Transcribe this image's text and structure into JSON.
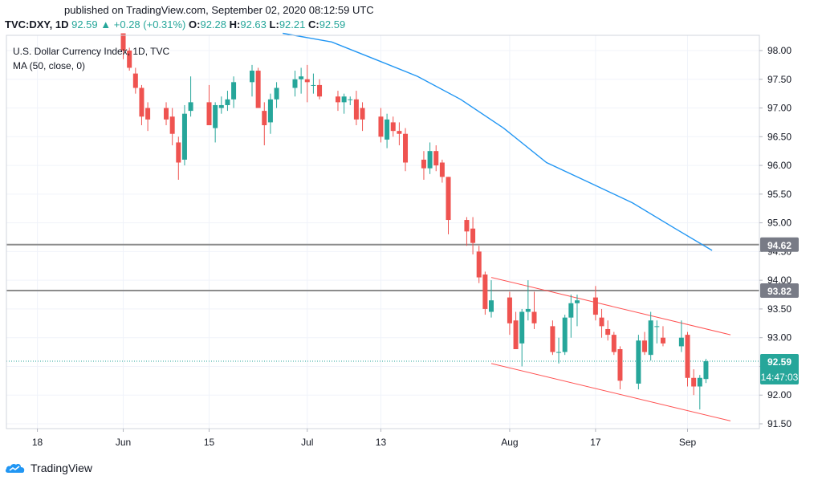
{
  "header": {
    "published": "published on TradingView.com, September 02, 2020 08:12:59 UTC",
    "symbol": "TVC:DXY, 1D",
    "last": "92.59",
    "up_arrow": "▲",
    "change": "+0.28 (+0.31%)",
    "o_label": "O:",
    "o": "92.28",
    "h_label": "H:",
    "h": "92.63",
    "l_label": "L:",
    "l": "92.21",
    "c_label": "C:",
    "c": "92.59"
  },
  "legend": {
    "title": "U.S. Dollar Currency Index, 1D, TVC",
    "ma": "MA (50, close, 0)"
  },
  "price_axis": {
    "ticks": [
      "98.00",
      "97.50",
      "97.00",
      "96.50",
      "96.00",
      "95.50",
      "95.00",
      "94.50",
      "94.00",
      "93.50",
      "93.00",
      "92.50",
      "92.00",
      "91.50"
    ]
  },
  "time_axis": {
    "ticks": [
      {
        "label": "18",
        "x": "2020-05-18"
      },
      {
        "label": "Jun",
        "x": "2020-06-01"
      },
      {
        "label": "15",
        "x": "2020-06-15"
      },
      {
        "label": "Jul",
        "x": "2020-07-01"
      },
      {
        "label": "13",
        "x": "2020-07-13"
      },
      {
        "label": "Aug",
        "x": "2020-08-03"
      },
      {
        "label": "17",
        "x": "2020-08-17"
      },
      {
        "label": "Sep",
        "x": "2020-09-01"
      }
    ]
  },
  "price_labels": {
    "level1": "94.62",
    "level2": "93.82",
    "last": "92.59",
    "countdown": "14:47:03"
  },
  "footer": {
    "brand": "TradingView"
  },
  "colors": {
    "up": "#26a69a",
    "down": "#ef5350",
    "ma": "#2196f3",
    "channel": "#ff5252",
    "level": "#8c8c8c"
  },
  "chart_data": {
    "type": "candlestick",
    "title": "U.S. Dollar Currency Index, 1D, TVC",
    "x_range": [
      "2020-05-14",
      "2020-09-08"
    ],
    "ylim": [
      91.4,
      98.3
    ],
    "candles": [
      {
        "x": "2020-06-01",
        "o": 98.3,
        "h": 98.3,
        "l": 97.85,
        "c": 98.0
      },
      {
        "x": "2020-06-02",
        "o": 98.0,
        "h": 98.05,
        "l": 97.65,
        "c": 97.7
      },
      {
        "x": "2020-06-03",
        "o": 97.6,
        "h": 97.7,
        "l": 97.25,
        "c": 97.35
      },
      {
        "x": "2020-06-04",
        "o": 97.35,
        "h": 97.4,
        "l": 96.7,
        "c": 96.85
      },
      {
        "x": "2020-06-05",
        "o": 97.0,
        "h": 97.1,
        "l": 96.6,
        "c": 96.8
      },
      {
        "x": "2020-06-08",
        "o": 97.0,
        "h": 97.1,
        "l": 96.7,
        "c": 96.8
      },
      {
        "x": "2020-06-09",
        "o": 96.85,
        "h": 97.0,
        "l": 96.35,
        "c": 96.55
      },
      {
        "x": "2020-06-10",
        "o": 96.4,
        "h": 96.5,
        "l": 95.75,
        "c": 96.05
      },
      {
        "x": "2020-06-11",
        "o": 96.1,
        "h": 97.05,
        "l": 96.0,
        "c": 96.9
      },
      {
        "x": "2020-06-12",
        "o": 96.95,
        "h": 97.55,
        "l": 96.85,
        "c": 97.1
      },
      {
        "x": "2020-06-15",
        "o": 97.1,
        "h": 97.4,
        "l": 96.7,
        "c": 96.7
      },
      {
        "x": "2020-06-16",
        "o": 96.65,
        "h": 97.1,
        "l": 96.4,
        "c": 97.05
      },
      {
        "x": "2020-06-17",
        "o": 97.0,
        "h": 97.2,
        "l": 96.9,
        "c": 97.05
      },
      {
        "x": "2020-06-18",
        "o": 97.05,
        "h": 97.3,
        "l": 96.95,
        "c": 97.15
      },
      {
        "x": "2020-06-19",
        "o": 97.15,
        "h": 97.55,
        "l": 97.0,
        "c": 97.45
      },
      {
        "x": "2020-06-22",
        "o": 97.45,
        "h": 97.75,
        "l": 97.2,
        "c": 97.65
      },
      {
        "x": "2020-06-23",
        "o": 97.65,
        "h": 97.7,
        "l": 97.0,
        "c": 97.0
      },
      {
        "x": "2020-06-24",
        "o": 96.95,
        "h": 97.1,
        "l": 96.35,
        "c": 96.7
      },
      {
        "x": "2020-06-25",
        "o": 96.75,
        "h": 97.25,
        "l": 96.55,
        "c": 97.15
      },
      {
        "x": "2020-06-26",
        "o": 97.15,
        "h": 97.45,
        "l": 97.0,
        "c": 97.35
      },
      {
        "x": "2020-06-29",
        "o": 97.35,
        "h": 97.65,
        "l": 97.2,
        "c": 97.5
      },
      {
        "x": "2020-06-30",
        "o": 97.5,
        "h": 97.7,
        "l": 97.25,
        "c": 97.55
      },
      {
        "x": "2020-07-01",
        "o": 97.5,
        "h": 97.75,
        "l": 97.1,
        "c": 97.45
      },
      {
        "x": "2020-07-02",
        "o": 97.4,
        "h": 97.6,
        "l": 97.25,
        "c": 97.4
      },
      {
        "x": "2020-07-03",
        "o": 97.4,
        "h": 97.5,
        "l": 97.15,
        "c": 97.2
      },
      {
        "x": "2020-07-06",
        "o": 97.2,
        "h": 97.3,
        "l": 96.95,
        "c": 97.1
      },
      {
        "x": "2020-07-07",
        "o": 97.1,
        "h": 97.25,
        "l": 96.9,
        "c": 97.2
      },
      {
        "x": "2020-07-08",
        "o": 97.15,
        "h": 97.2,
        "l": 97.05,
        "c": 97.15
      },
      {
        "x": "2020-07-09",
        "o": 97.15,
        "h": 97.3,
        "l": 96.7,
        "c": 96.8
      },
      {
        "x": "2020-07-10",
        "o": 97.0,
        "h": 97.1,
        "l": 96.6,
        "c": 96.8
      },
      {
        "x": "2020-07-13",
        "o": 96.85,
        "h": 97.0,
        "l": 96.4,
        "c": 96.5
      },
      {
        "x": "2020-07-14",
        "o": 96.45,
        "h": 96.9,
        "l": 96.3,
        "c": 96.8
      },
      {
        "x": "2020-07-15",
        "o": 96.75,
        "h": 96.85,
        "l": 96.5,
        "c": 96.6
      },
      {
        "x": "2020-07-16",
        "o": 96.6,
        "h": 96.75,
        "l": 96.35,
        "c": 96.55
      },
      {
        "x": "2020-07-17",
        "o": 96.55,
        "h": 96.65,
        "l": 95.9,
        "c": 96.05
      },
      {
        "x": "2020-07-20",
        "o": 96.1,
        "h": 96.25,
        "l": 95.75,
        "c": 95.95
      },
      {
        "x": "2020-07-21",
        "o": 95.95,
        "h": 96.4,
        "l": 95.85,
        "c": 96.25
      },
      {
        "x": "2020-07-22",
        "o": 96.25,
        "h": 96.35,
        "l": 95.9,
        "c": 96.0
      },
      {
        "x": "2020-07-23",
        "o": 96.05,
        "h": 96.1,
        "l": 95.7,
        "c": 95.8
      },
      {
        "x": "2020-07-24",
        "o": 95.8,
        "h": 95.8,
        "l": 94.8,
        "c": 95.05
      },
      {
        "x": "2020-07-27",
        "o": 95.05,
        "h": 95.1,
        "l": 94.6,
        "c": 94.85
      },
      {
        "x": "2020-07-28",
        "o": 94.9,
        "h": 95.1,
        "l": 94.45,
        "c": 94.65
      },
      {
        "x": "2020-07-29",
        "o": 94.5,
        "h": 94.6,
        "l": 93.95,
        "c": 94.05
      },
      {
        "x": "2020-07-30",
        "o": 94.1,
        "h": 94.15,
        "l": 93.4,
        "c": 93.5
      },
      {
        "x": "2020-07-31",
        "o": 93.45,
        "h": 94.0,
        "l": 93.35,
        "c": 93.65
      },
      {
        "x": "2020-08-03",
        "o": 93.7,
        "h": 93.8,
        "l": 93.05,
        "c": 93.25
      },
      {
        "x": "2020-08-04",
        "o": 93.3,
        "h": 93.45,
        "l": 92.8,
        "c": 92.8
      },
      {
        "x": "2020-08-05",
        "o": 92.9,
        "h": 93.5,
        "l": 92.5,
        "c": 93.45
      },
      {
        "x": "2020-08-06",
        "o": 93.45,
        "h": 94.0,
        "l": 93.3,
        "c": 93.5
      },
      {
        "x": "2020-08-07",
        "o": 93.45,
        "h": 93.8,
        "l": 93.15,
        "c": 93.25
      },
      {
        "x": "2020-08-10",
        "o": 93.2,
        "h": 93.3,
        "l": 92.7,
        "c": 92.75
      },
      {
        "x": "2020-08-11",
        "o": 92.75,
        "h": 93.0,
        "l": 92.55,
        "c": 92.75
      },
      {
        "x": "2020-08-12",
        "o": 92.75,
        "h": 93.4,
        "l": 92.7,
        "c": 93.35
      },
      {
        "x": "2020-08-13",
        "o": 93.35,
        "h": 93.75,
        "l": 93.0,
        "c": 93.6
      },
      {
        "x": "2020-08-14",
        "o": 93.6,
        "h": 93.75,
        "l": 93.2,
        "c": 93.65
      },
      {
        "x": "2020-08-17",
        "o": 93.7,
        "h": 93.9,
        "l": 93.3,
        "c": 93.4
      },
      {
        "x": "2020-08-18",
        "o": 93.35,
        "h": 93.5,
        "l": 93.0,
        "c": 93.2
      },
      {
        "x": "2020-08-19",
        "o": 93.15,
        "h": 93.3,
        "l": 92.95,
        "c": 93.05
      },
      {
        "x": "2020-08-20",
        "o": 93.05,
        "h": 93.1,
        "l": 92.7,
        "c": 92.75
      },
      {
        "x": "2020-08-21",
        "o": 92.8,
        "h": 92.85,
        "l": 92.1,
        "c": 92.25
      },
      {
        "x": "2020-08-24",
        "o": 92.2,
        "h": 93.05,
        "l": 92.1,
        "c": 92.95
      },
      {
        "x": "2020-08-25",
        "o": 92.95,
        "h": 93.1,
        "l": 92.7,
        "c": 92.75
      },
      {
        "x": "2020-08-26",
        "o": 92.7,
        "h": 93.45,
        "l": 92.6,
        "c": 93.3
      },
      {
        "x": "2020-08-27",
        "o": 93.2,
        "h": 93.3,
        "l": 92.9,
        "c": 93.2
      },
      {
        "x": "2020-08-28",
        "o": 93.0,
        "h": 93.2,
        "l": 92.85,
        "c": 92.9
      },
      {
        "x": "2020-08-31",
        "o": 92.85,
        "h": 93.3,
        "l": 92.75,
        "c": 93.0
      },
      {
        "x": "2020-09-01",
        "o": 93.05,
        "h": 93.1,
        "l": 92.15,
        "c": 92.3
      },
      {
        "x": "2020-09-02",
        "o": 92.3,
        "h": 92.45,
        "l": 92.0,
        "c": 92.15
      },
      {
        "x": "2020-09-03",
        "o": 92.15,
        "h": 92.35,
        "l": 91.75,
        "c": 92.3
      },
      {
        "x": "2020-09-04",
        "o": 92.28,
        "h": 92.63,
        "l": 92.21,
        "c": 92.59
      }
    ],
    "ma50": [
      {
        "x": "2020-06-27",
        "y": 98.3
      },
      {
        "x": "2020-07-05",
        "y": 98.15
      },
      {
        "x": "2020-07-12",
        "y": 97.85
      },
      {
        "x": "2020-07-19",
        "y": 97.55
      },
      {
        "x": "2020-07-26",
        "y": 97.15
      },
      {
        "x": "2020-08-02",
        "y": 96.65
      },
      {
        "x": "2020-08-09",
        "y": 96.05
      },
      {
        "x": "2020-08-16",
        "y": 95.7
      },
      {
        "x": "2020-08-23",
        "y": 95.35
      },
      {
        "x": "2020-08-30",
        "y": 94.9
      },
      {
        "x": "2020-09-05",
        "y": 94.52
      }
    ],
    "levels": [
      94.62,
      93.82
    ],
    "channel": [
      {
        "x1": "2020-07-31",
        "y1": 94.05,
        "x2": "2020-09-08",
        "y2": 93.05
      },
      {
        "x1": "2020-07-31",
        "y1": 92.55,
        "x2": "2020-09-08",
        "y2": 91.55
      }
    ],
    "last_price": 92.59
  }
}
